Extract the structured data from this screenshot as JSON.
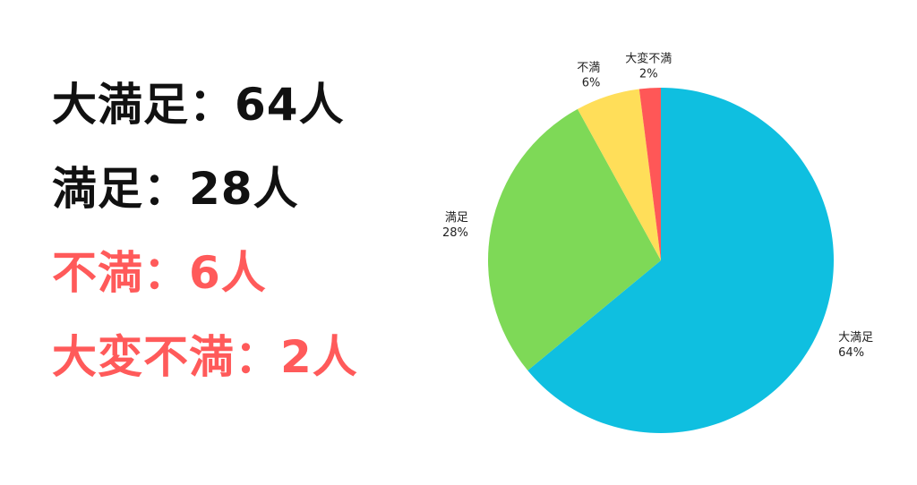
{
  "summary": [
    {
      "label": "大満足",
      "sep": "：",
      "count": "64人",
      "color": "#111111"
    },
    {
      "label": "満足",
      "sep": "：",
      "count": "28人",
      "color": "#111111"
    },
    {
      "label": "不満",
      "sep": "：",
      "count": "6人",
      "color": "#ff5a5a"
    },
    {
      "label": "大変不満",
      "sep": "：",
      "count": "2人",
      "color": "#ff5a5a"
    }
  ],
  "chart_data": {
    "type": "pie",
    "categories": [
      "大満足",
      "満足",
      "不満",
      "大変不満"
    ],
    "values": [
      64,
      28,
      6,
      2
    ],
    "percent_labels": [
      "64%",
      "28%",
      "6%",
      "2%"
    ],
    "colors": [
      "#0fbfe0",
      "#7ed957",
      "#ffde59",
      "#ff5757"
    ],
    "start_angle_deg": 0,
    "direction": "clockwise",
    "labels_outside": true
  }
}
